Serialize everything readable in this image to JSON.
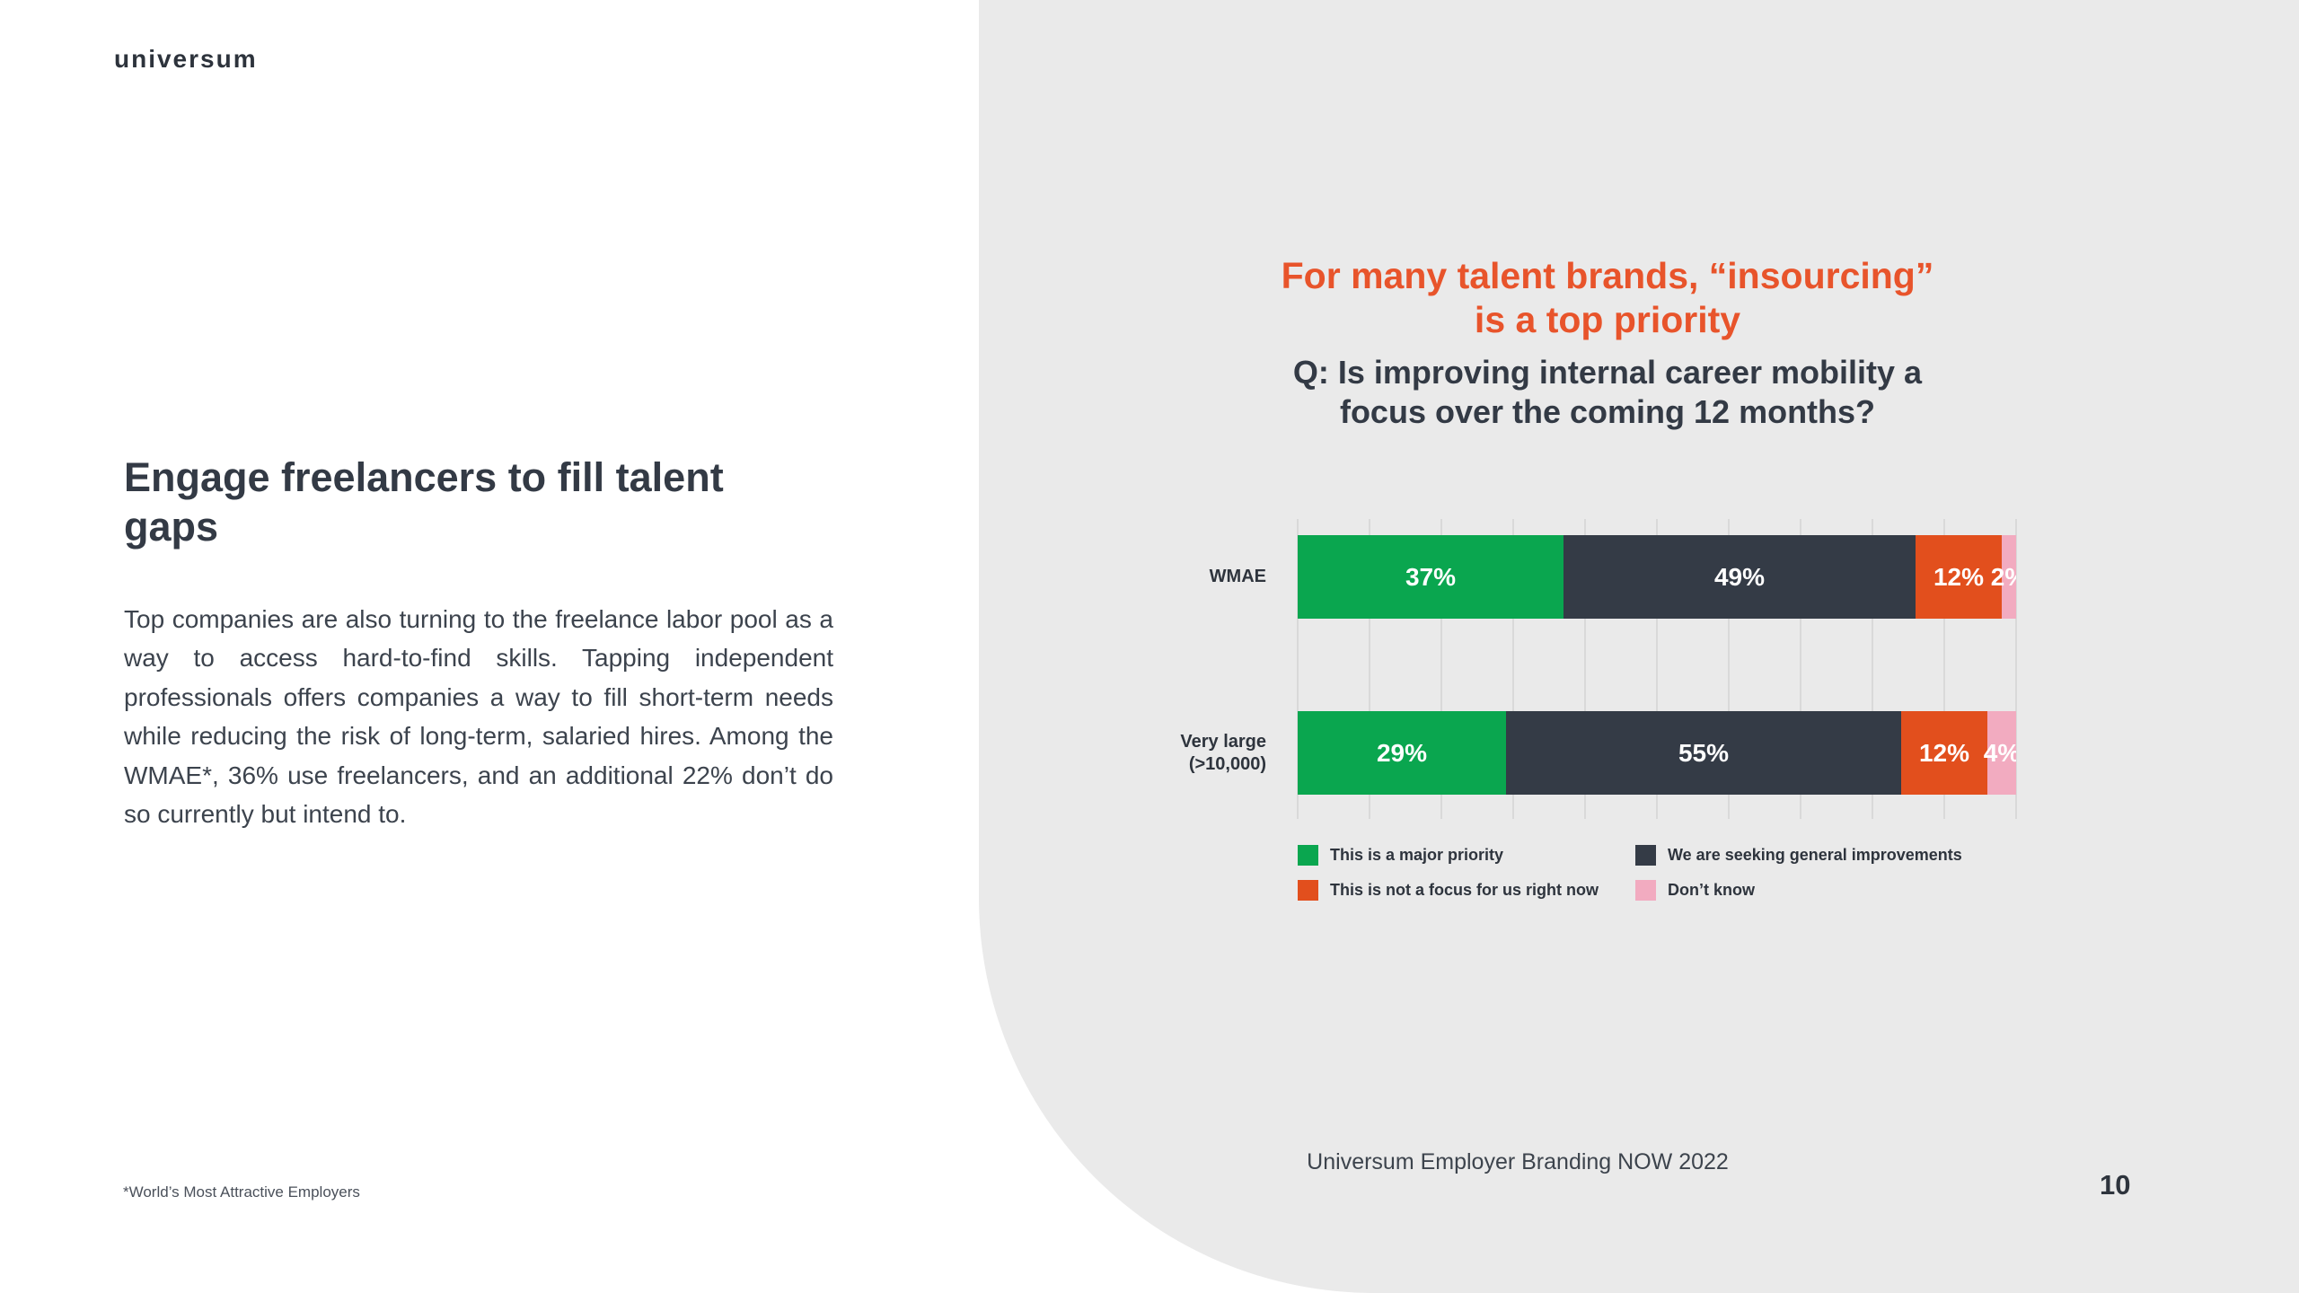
{
  "slide": {
    "logo_text": "universum",
    "footnote": "*World’s Most Attractive Employers",
    "footer_source": "Universum Employer Branding NOW 2022",
    "page_number": "10"
  },
  "left": {
    "heading": "Engage freelancers to fill talent gaps",
    "body": "Top companies are also turning to the freelance labor pool as a way to access hard-to-find skills. Tapping independent professionals offers companies a way to fill short-term needs while reducing the risk of long-term, salaried hires. Among the WMAE*, 36% use freelancers, and an additional 22% don’t do so currently but intend to."
  },
  "right": {
    "title_line1": "For many talent brands, “insourcing”",
    "title_line2": "is a top priority",
    "question_line1": "Q: Is improving internal career mobility a",
    "question_line2": "focus over the coming 12 months?"
  },
  "colors": {
    "accent_orange": "#e8542b",
    "panel_gray": "#eaeaea",
    "text_dark": "#333a45",
    "green": "#0aa64f",
    "slate": "#343b46",
    "orange": "#e24f1d",
    "pink": "#f2abc0"
  },
  "chart_data": {
    "type": "bar",
    "orientation": "horizontal-stacked",
    "title": "For many talent brands, “insourcing” is a top priority",
    "subtitle": "Q: Is improving internal career mobility a focus over the coming 12 months?",
    "categories": [
      "WMAE",
      "Very large\n(>10,000)"
    ],
    "series": [
      {
        "name": "This is a major priority",
        "color": "#0aa64f",
        "values": [
          37,
          29
        ]
      },
      {
        "name": "We are seeking general improvements",
        "color": "#343b46",
        "values": [
          49,
          55
        ]
      },
      {
        "name": "This is not a focus for us right now",
        "color": "#e24f1d",
        "values": [
          12,
          12
        ]
      },
      {
        "name": "Don’t know",
        "color": "#f2abc0",
        "values": [
          2,
          4
        ]
      }
    ],
    "value_suffix": "%",
    "xlim": [
      0,
      100
    ],
    "grid": true,
    "gridline_step": 10,
    "legend_position": "bottom"
  }
}
